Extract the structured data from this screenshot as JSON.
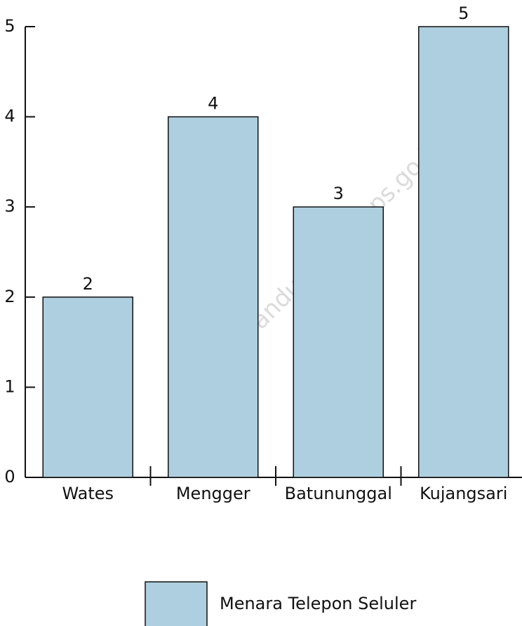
{
  "chart_data": {
    "type": "bar",
    "categories": [
      "Wates",
      "Mengger",
      "Batununggal",
      "Kujangsari"
    ],
    "series": [
      {
        "name": "Menara Telepon Seluler",
        "color": "#aecfdf",
        "values": [
          2,
          4,
          3,
          5
        ]
      }
    ],
    "ylim": [
      0,
      5
    ],
    "yticks": [
      0,
      1,
      2,
      3,
      4,
      5
    ],
    "legend": "bottom",
    "watermark": "https://bandungkota.bps.go.id"
  }
}
